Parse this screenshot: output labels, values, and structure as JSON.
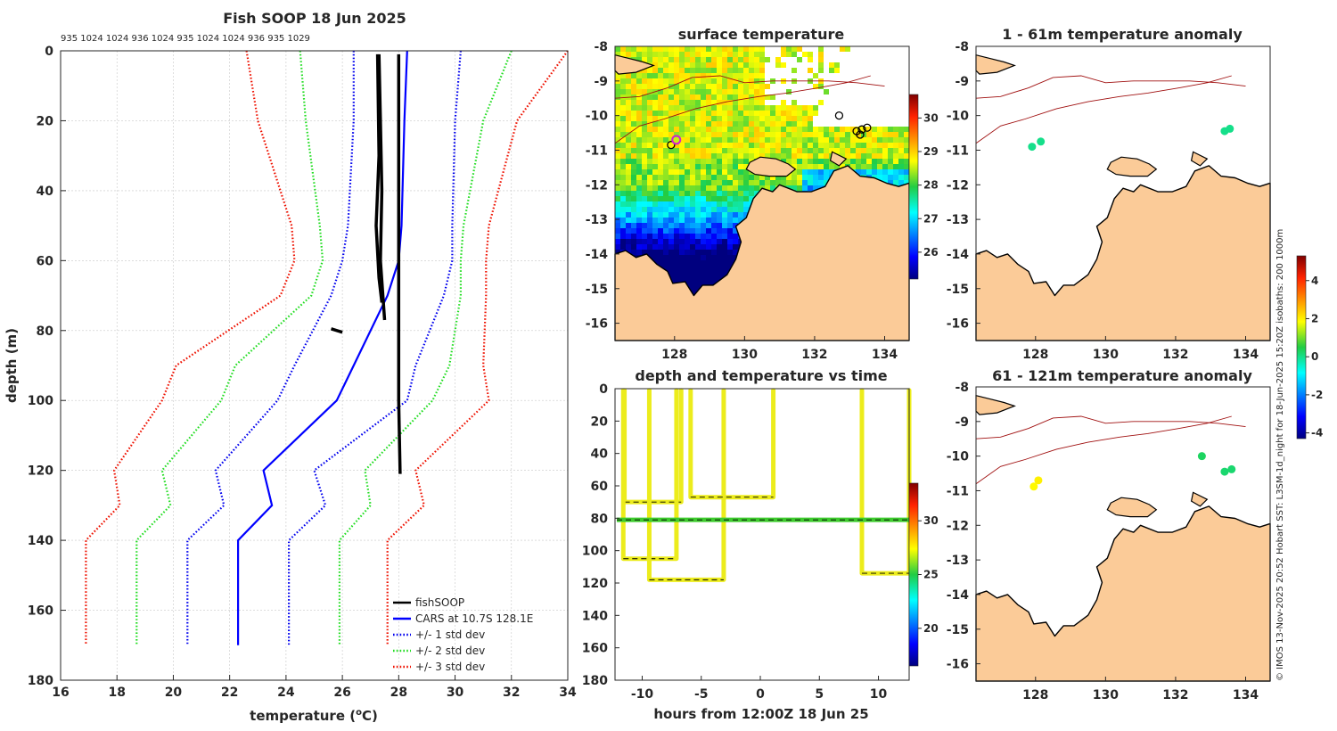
{
  "colors": {
    "fish": "#000000",
    "cars": "#0000ff",
    "std1": "#0000ee",
    "std2": "#22dd22",
    "std3": "#ee1100",
    "land": "#fbcb98",
    "grid": "#c8c8c8",
    "isobath": "#a01010",
    "trace": "#ecec1c",
    "trace80": "#3ecb2e"
  },
  "credit": "© IMOS 13-Nov-2025 20:52 Hobart SST: L3SM-1d_night for 18-Jun-2025 15:20Z isobaths: 200  1000m",
  "chart_data": [
    {
      "id": "profile",
      "type": "line",
      "title": "Fish SOOP 18 Jun 2025",
      "subtitle": "935 1024 1024 936 1024 935 1024 1024 936 935 1029",
      "xlabel": "temperature (°C)",
      "xlabel_main": "temperature (",
      "xlabel_sup": "o",
      "xlabel_end": "C)",
      "ylabel": "depth (m)",
      "xlim": [
        16,
        34
      ],
      "ylim": [
        0,
        180
      ],
      "y_reversed": true,
      "xticks": [
        16,
        18,
        20,
        22,
        24,
        26,
        28,
        30,
        32,
        34
      ],
      "yticks": [
        0,
        20,
        40,
        60,
        80,
        100,
        120,
        140,
        160,
        180
      ],
      "grid": true,
      "legend_position": "bottom-right",
      "depth": [
        0,
        20,
        50,
        60,
        70,
        90,
        100,
        120,
        130,
        140,
        170
      ],
      "series": [
        {
          "name": "CARS at 10.7S 128.1E",
          "style": "solid",
          "color_key": "cars",
          "temperature": [
            28.3,
            28.2,
            28.1,
            28.0,
            27.6,
            26.4,
            25.8,
            23.2,
            23.5,
            22.3,
            22.3
          ]
        },
        {
          "name": "+/- 1 std dev",
          "style": "dotted",
          "color_key": "std1",
          "temperature": [
            26.4,
            26.4,
            26.2,
            26.0,
            25.6,
            24.3,
            23.7,
            21.5,
            21.8,
            20.5,
            20.5
          ]
        },
        {
          "name": "+/- 1 std dev (upper)",
          "style": "dotted",
          "color_key": "std1",
          "legend": false,
          "temperature": [
            30.2,
            30.0,
            29.9,
            29.9,
            29.6,
            28.6,
            28.3,
            25.0,
            25.4,
            24.1,
            24.1
          ]
        },
        {
          "name": "+/- 2 std dev",
          "style": "dotted",
          "color_key": "std2",
          "temperature": [
            24.5,
            24.7,
            25.2,
            25.3,
            24.9,
            22.2,
            21.7,
            19.6,
            19.9,
            18.7,
            18.7
          ]
        },
        {
          "name": "+/- 2 std dev (upper)",
          "style": "dotted",
          "color_key": "std2",
          "legend": false,
          "temperature": [
            32.0,
            31.0,
            30.3,
            30.2,
            30.2,
            29.8,
            29.2,
            26.8,
            27.0,
            25.9,
            25.9
          ]
        },
        {
          "name": "+/- 3 std dev",
          "style": "dotted",
          "color_key": "std3",
          "temperature": [
            22.6,
            23.0,
            24.2,
            24.3,
            23.8,
            20.1,
            19.6,
            17.9,
            18.1,
            16.9,
            16.9
          ]
        },
        {
          "name": "+/- 3 std dev (upper)",
          "style": "dotted",
          "color_key": "std3",
          "legend": false,
          "temperature": [
            34.0,
            32.2,
            31.2,
            31.1,
            31.1,
            31.0,
            31.2,
            28.6,
            28.9,
            27.6,
            27.6
          ]
        }
      ],
      "fishsoop": {
        "name": "fishSOOP",
        "casts": [
          {
            "depth": [
              1,
              20,
              40,
              60,
              77
            ],
            "temperature": [
              27.3,
              27.35,
              27.4,
              27.35,
              27.5
            ]
          },
          {
            "depth": [
              1,
              30,
              50,
              65,
              72
            ],
            "temperature": [
              27.25,
              27.3,
              27.2,
              27.3,
              27.4
            ]
          },
          {
            "depth": [
              1,
              40,
              60,
              80,
              100,
              121
            ],
            "temperature": [
              28.0,
              28.0,
              28.0,
              28.0,
              28.0,
              28.05
            ]
          },
          {
            "depth": [
              79.5,
              80.5
            ],
            "temperature": [
              25.6,
              26.0
            ]
          }
        ]
      }
    },
    {
      "id": "sst_map",
      "type": "heatmap",
      "title": "surface temperature",
      "xlim": [
        126.3,
        134.7
      ],
      "ylim": [
        -16.5,
        -8
      ],
      "xticks": [
        128,
        130,
        132,
        134
      ],
      "yticks": [
        -8,
        -9,
        -10,
        -11,
        -12,
        -13,
        -14,
        -15,
        -16
      ],
      "colorbar": {
        "min": 25.2,
        "max": 30.7,
        "ticks": [
          26,
          27,
          28,
          29,
          30
        ]
      }
    },
    {
      "id": "depth_time",
      "type": "line",
      "title": "depth and temperature vs time",
      "xlabel": "hours from 12:00Z 18 Jun 25",
      "xlim": [
        -12.3,
        12.6
      ],
      "ylim": [
        0,
        180
      ],
      "y_reversed": true,
      "xticks": [
        -10,
        -5,
        0,
        5,
        10
      ],
      "yticks": [
        0,
        20,
        40,
        60,
        80,
        100,
        120,
        140,
        160,
        180
      ],
      "colorbar": {
        "min": 16.5,
        "max": 33.5,
        "ticks": [
          20,
          25,
          30
        ]
      },
      "casts": [
        {
          "start": -11.5,
          "end": -6.7,
          "max_depth": 70
        },
        {
          "start": -11.6,
          "end": -7.1,
          "max_depth": 105
        },
        {
          "start": -9.4,
          "end": -3.1,
          "max_depth": 118
        },
        {
          "start": -5.9,
          "end": 1.1,
          "max_depth": 67
        },
        {
          "start": 8.6,
          "end": 12.6,
          "max_depth": 114
        }
      ],
      "persistent_depth": 81
    },
    {
      "id": "anom_shallow",
      "type": "scatter",
      "title": "1 - 61m temperature anomaly",
      "xlim": [
        126.3,
        134.7
      ],
      "ylim": [
        -16.5,
        -8
      ],
      "xticks": [
        128,
        130,
        132,
        134
      ],
      "yticks": [
        -8,
        -9,
        -10,
        -11,
        -12,
        -13,
        -14,
        -15,
        -16
      ],
      "points": [
        {
          "lon": 127.9,
          "lat": -10.9,
          "anomaly": 0.0
        },
        {
          "lon": 128.15,
          "lat": -10.75,
          "anomaly": 0.0
        },
        {
          "lon": 133.4,
          "lat": -10.45,
          "anomaly": 0.0
        },
        {
          "lon": 133.55,
          "lat": -10.38,
          "anomaly": 0.0
        }
      ]
    },
    {
      "id": "anom_deep",
      "type": "scatter",
      "title": "61 - 121m temperature anomaly",
      "xlim": [
        126.3,
        134.7
      ],
      "ylim": [
        -16.5,
        -8
      ],
      "xticks": [
        128,
        130,
        132,
        134
      ],
      "yticks": [
        -8,
        -9,
        -10,
        -11,
        -12,
        -13,
        -14,
        -15,
        -16
      ],
      "colorbar": {
        "min": -4.3,
        "max": 5.3,
        "ticks": [
          -4,
          -2,
          0,
          2,
          4
        ]
      },
      "points": [
        {
          "lon": 127.95,
          "lat": -10.88,
          "anomaly": 1.9
        },
        {
          "lon": 128.08,
          "lat": -10.7,
          "anomaly": 2.0
        },
        {
          "lon": 132.75,
          "lat": -10.0,
          "anomaly": 0.3
        },
        {
          "lon": 133.4,
          "lat": -10.45,
          "anomaly": 0.2
        },
        {
          "lon": 133.6,
          "lat": -10.38,
          "anomaly": 0.2
        }
      ]
    }
  ]
}
